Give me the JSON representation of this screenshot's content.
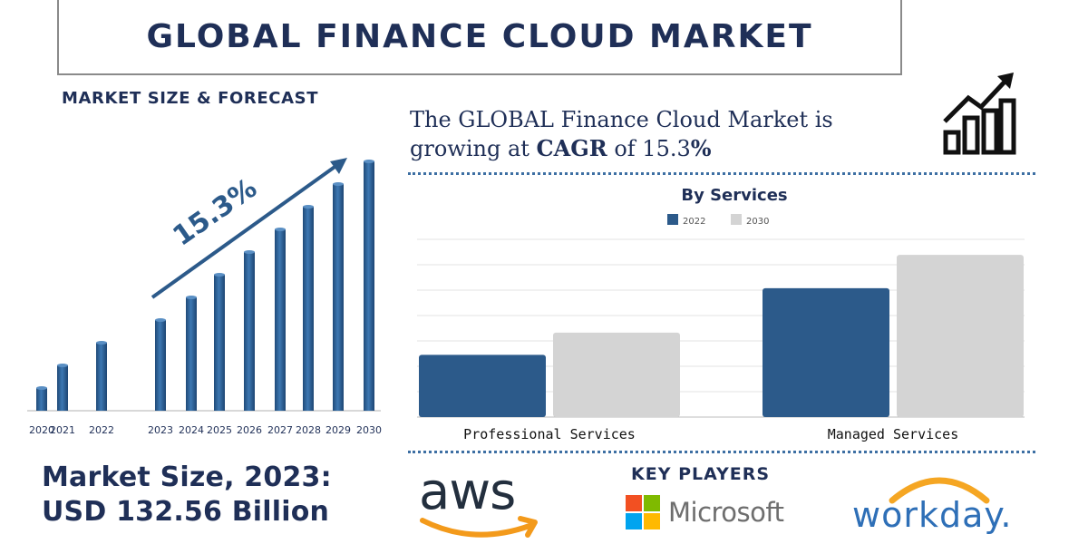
{
  "header": {
    "title": "GLOBAL FINANCE CLOUD MARKET"
  },
  "left_panel": {
    "section_label": "MARKET SIZE & FORECAST",
    "growth_label": "15.3%",
    "market_size_line1": "Market Size, 2023:",
    "market_size_line2": "USD 132.56 Billion"
  },
  "cagr": {
    "prefix": "The GLOBAL Finance Cloud Market is",
    "line2_start": "growing at ",
    "cagr_word": "CAGR",
    "line2_mid": " of 15.3",
    "percent": "%"
  },
  "key_players": {
    "label": "KEY PLAYERS",
    "aws": "aws",
    "microsoft": "Microsoft",
    "workday": "workday."
  },
  "icons": [
    "growth-chart-icon",
    "amazon-smile-arrow-icon",
    "microsoft-squares-icon",
    "workday-arc-icon"
  ],
  "colors": {
    "navy": "#1f2f57",
    "bar_blue": "#2c5a8a",
    "bar_grey": "#d4d4d4",
    "dotted_line": "#3d6fa3"
  },
  "chart_data": [
    {
      "type": "bar",
      "title": "",
      "categories": [
        "2020",
        "2021",
        "2022",
        "2023",
        "2024",
        "2025",
        "2026",
        "2027",
        "2028",
        "2029",
        "2030"
      ],
      "values": [
        1.0,
        2.0,
        3.0,
        4.0,
        5.0,
        6.0,
        7.0,
        8.0,
        9.0,
        10.0,
        11.0
      ],
      "annotation": "15.3%",
      "xlabel": "",
      "ylabel": "",
      "grid": false
    },
    {
      "type": "bar",
      "title": "By Services",
      "categories": [
        "Professional Services",
        "Managed Services"
      ],
      "series": [
        {
          "name": "2022",
          "values": [
            28,
            58
          ]
        },
        {
          "name": "2030",
          "values": [
            38,
            73
          ]
        }
      ],
      "ylim": [
        0,
        80
      ],
      "grid": true,
      "legend": "top"
    }
  ]
}
